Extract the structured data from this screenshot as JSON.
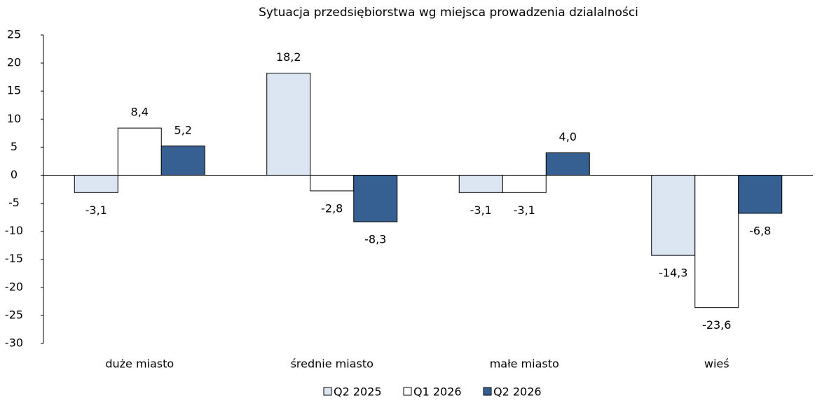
{
  "chart_data": {
    "type": "bar",
    "title": "Sytuacja przedsiębiorstwa wg miejsca prowadzenia dzialalności",
    "categories": [
      "duże miasto",
      "średnie miasto",
      "małe miasto",
      "wieś"
    ],
    "series": [
      {
        "name": "Q2 2025",
        "color": "#dce6f2",
        "values": [
          -3.1,
          18.2,
          -3.1,
          -14.3
        ],
        "value_labels": [
          "-3,1",
          "18,2",
          "-3,1",
          "-14,3"
        ]
      },
      {
        "name": "Q1 2026",
        "color": "#ffffff",
        "values": [
          8.4,
          -2.8,
          -3.1,
          -23.6
        ],
        "value_labels": [
          "8,4",
          "-2,8",
          "-3,1",
          "-23,6"
        ]
      },
      {
        "name": "Q2 2026",
        "color": "#376092",
        "values": [
          5.2,
          -8.3,
          4.0,
          -6.8
        ],
        "value_labels": [
          "5,2",
          "-8,3",
          "4,0",
          "-6,8"
        ]
      }
    ],
    "ylim": [
      -30,
      25
    ],
    "yticks": [
      -30,
      -25,
      -20,
      -15,
      -10,
      -5,
      0,
      5,
      10,
      15,
      20,
      25
    ],
    "legend": "bottom"
  }
}
